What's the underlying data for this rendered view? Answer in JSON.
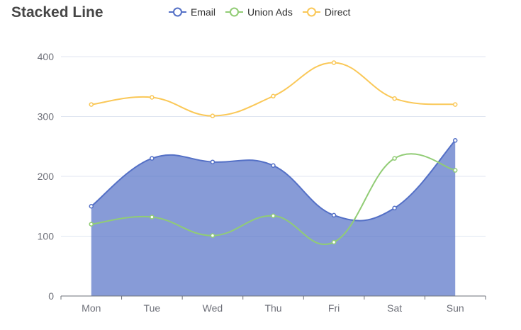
{
  "chart_data": {
    "type": "line",
    "title": "Stacked Line",
    "categories": [
      "Mon",
      "Tue",
      "Wed",
      "Thu",
      "Fri",
      "Sat",
      "Sun"
    ],
    "ylim": [
      0,
      400
    ],
    "yticks": [
      0,
      100,
      200,
      300,
      400
    ],
    "grid": true,
    "legend_position": "top-center",
    "series": [
      {
        "name": "Email",
        "color": "#5470c6",
        "area": true,
        "values": [
          150,
          230,
          224,
          218,
          135,
          147,
          260
        ]
      },
      {
        "name": "Union Ads",
        "color": "#91cc75",
        "area": false,
        "values": [
          120,
          132,
          101,
          134,
          90,
          230,
          210
        ]
      },
      {
        "name": "Direct",
        "color": "#fac858",
        "area": false,
        "values": [
          320,
          332,
          301,
          334,
          390,
          330,
          320
        ]
      }
    ]
  }
}
